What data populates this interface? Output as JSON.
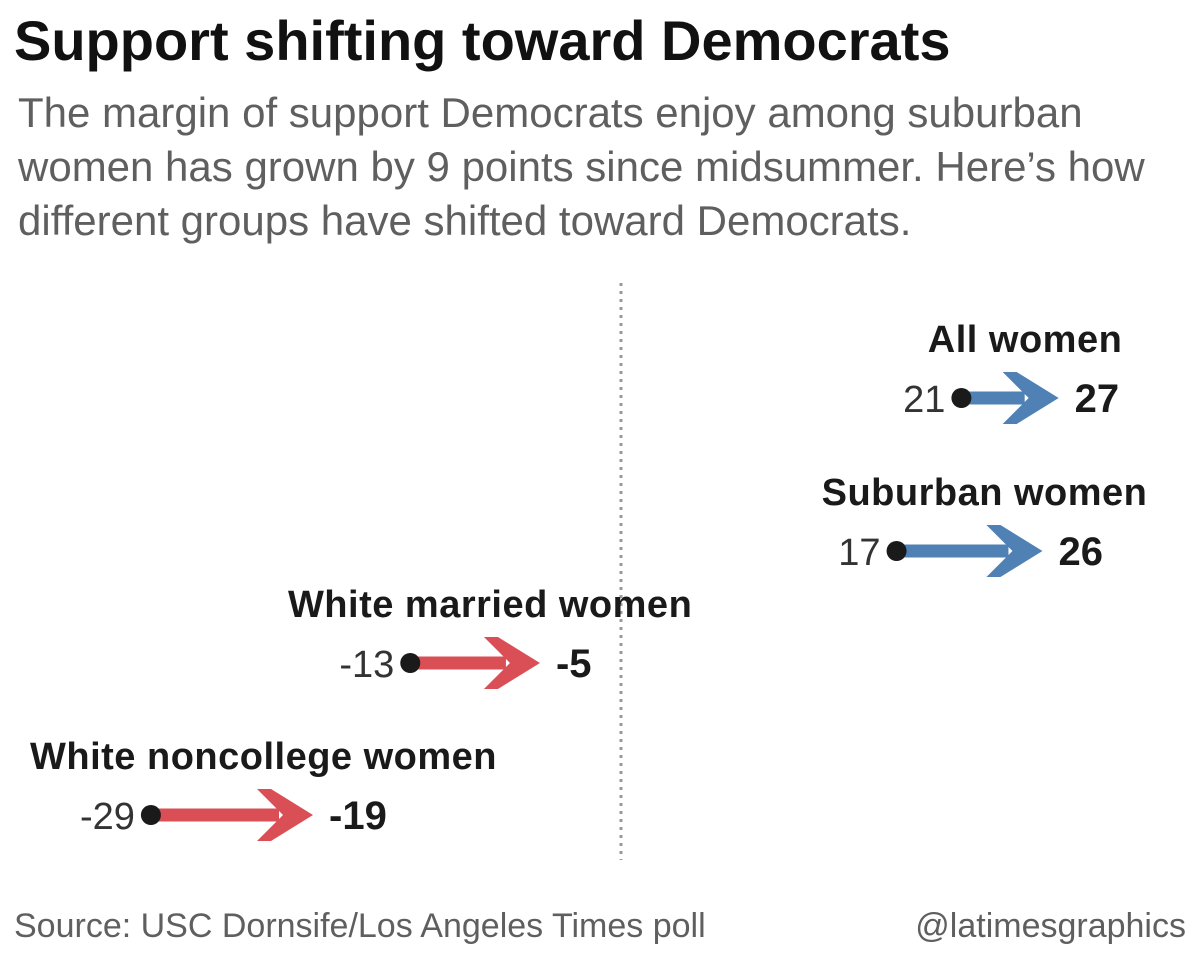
{
  "title": "Support shifting toward Democrats",
  "subtitle": "The margin of support Democrats enjoy among suburban women has grown by 9 points since midsummer. Here’s how different groups have shifted toward Democrats.",
  "footer": {
    "source": "Source: USC Dornsife/Los Angeles Times poll",
    "credit": "@latimesgraphics"
  },
  "colors": {
    "toward_dem_positive": "#4f81b5",
    "toward_dem_negative": "#d94f55",
    "dot": "#1a1a1a",
    "zero_line": "#9a9a9a"
  },
  "chart_data": {
    "type": "arrow-dot",
    "zero_line": 0,
    "series": [
      {
        "name": "All women",
        "start": 21,
        "end": 27,
        "start_label": "21",
        "end_label": "27"
      },
      {
        "name": "Suburban women",
        "start": 17,
        "end": 26,
        "start_label": "17",
        "end_label": "26"
      },
      {
        "name": "White married women",
        "start": -13,
        "end": -5,
        "start_label": "-13",
        "end_label": "-5"
      },
      {
        "name": "White noncollege women",
        "start": -29,
        "end": -19,
        "start_label": "-29",
        "end_label": "-19"
      }
    ]
  }
}
